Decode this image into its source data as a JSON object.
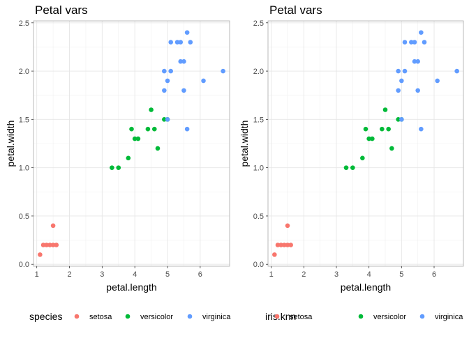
{
  "chart_data": [
    {
      "type": "scatter",
      "title": "Petal vars",
      "xlabel": "petal.length",
      "ylabel": "petal.width",
      "xlim": [
        0.9,
        6.9
      ],
      "ylim": [
        -0.02,
        2.52
      ],
      "xticks": [
        1,
        2,
        3,
        4,
        5,
        6
      ],
      "yticks": [
        0.0,
        0.5,
        1.0,
        1.5,
        2.0,
        2.5
      ],
      "ytick_labels": [
        "0.0",
        "0.5",
        "1.0",
        "1.5",
        "2.0",
        "2.5"
      ],
      "grid": true,
      "legend": {
        "title": "species",
        "placement": "bottom",
        "entries": [
          "setosa",
          "versicolor",
          "virginica"
        ]
      },
      "series": [
        {
          "name": "setosa",
          "color": "#F8766D",
          "points": [
            [
              1.1,
              0.1
            ],
            [
              1.2,
              0.2
            ],
            [
              1.3,
              0.2
            ],
            [
              1.4,
              0.2
            ],
            [
              1.5,
              0.2
            ],
            [
              1.6,
              0.2
            ],
            [
              1.5,
              0.4
            ]
          ]
        },
        {
          "name": "versicolor",
          "color": "#00BA38",
          "points": [
            [
              3.3,
              1.0
            ],
            [
              3.5,
              1.0
            ],
            [
              3.8,
              1.1
            ],
            [
              3.9,
              1.4
            ],
            [
              4.0,
              1.3
            ],
            [
              4.1,
              1.3
            ],
            [
              4.4,
              1.4
            ],
            [
              4.5,
              1.6
            ],
            [
              4.6,
              1.4
            ],
            [
              4.7,
              1.2
            ],
            [
              4.9,
              1.5
            ],
            [
              5.0,
              1.5
            ]
          ]
        },
        {
          "name": "virginica",
          "color": "#619CFF",
          "points": [
            [
              4.9,
              1.8
            ],
            [
              4.9,
              2.0
            ],
            [
              5.0,
              1.9
            ],
            [
              5.0,
              1.5
            ],
            [
              5.1,
              2.3
            ],
            [
              5.1,
              2.0
            ],
            [
              5.3,
              2.3
            ],
            [
              5.4,
              2.3
            ],
            [
              5.4,
              2.1
            ],
            [
              5.5,
              2.1
            ],
            [
              5.5,
              1.8
            ],
            [
              5.6,
              2.4
            ],
            [
              5.6,
              1.4
            ],
            [
              5.7,
              2.3
            ],
            [
              6.1,
              1.9
            ],
            [
              6.7,
              2.0
            ]
          ]
        }
      ]
    },
    {
      "type": "scatter",
      "title": "Petal vars",
      "xlabel": "petal.length",
      "ylabel": "petal.width",
      "xlim": [
        0.9,
        6.9
      ],
      "ylim": [
        -0.02,
        2.52
      ],
      "xticks": [
        1,
        2,
        3,
        4,
        5,
        6
      ],
      "yticks": [
        0.0,
        0.5,
        1.0,
        1.5,
        2.0,
        2.5
      ],
      "ytick_labels": [
        "0.0",
        "0.5",
        "1.0",
        "1.5",
        "2.0",
        "2.5"
      ],
      "grid": true,
      "legend": {
        "title": "iris.knn",
        "placement": "bottom",
        "entries": [
          "setosa",
          "versicolor",
          "virginica"
        ]
      },
      "series": [
        {
          "name": "setosa",
          "color": "#F8766D",
          "points": [
            [
              1.1,
              0.1
            ],
            [
              1.2,
              0.2
            ],
            [
              1.3,
              0.2
            ],
            [
              1.4,
              0.2
            ],
            [
              1.5,
              0.2
            ],
            [
              1.6,
              0.2
            ],
            [
              1.5,
              0.4
            ]
          ]
        },
        {
          "name": "versicolor",
          "color": "#00BA38",
          "points": [
            [
              3.3,
              1.0
            ],
            [
              3.5,
              1.0
            ],
            [
              3.8,
              1.1
            ],
            [
              3.9,
              1.4
            ],
            [
              4.0,
              1.3
            ],
            [
              4.1,
              1.3
            ],
            [
              4.4,
              1.4
            ],
            [
              4.5,
              1.6
            ],
            [
              4.6,
              1.4
            ],
            [
              4.7,
              1.2
            ],
            [
              4.9,
              1.5
            ],
            [
              5.0,
              1.5
            ]
          ]
        },
        {
          "name": "virginica",
          "color": "#619CFF",
          "points": [
            [
              4.9,
              1.8
            ],
            [
              4.9,
              2.0
            ],
            [
              5.0,
              1.9
            ],
            [
              5.0,
              1.5
            ],
            [
              5.1,
              2.3
            ],
            [
              5.1,
              2.0
            ],
            [
              5.3,
              2.3
            ],
            [
              5.4,
              2.3
            ],
            [
              5.4,
              2.1
            ],
            [
              5.5,
              2.1
            ],
            [
              5.5,
              1.8
            ],
            [
              5.6,
              2.4
            ],
            [
              5.6,
              1.4
            ],
            [
              5.7,
              2.3
            ],
            [
              6.1,
              1.9
            ],
            [
              6.7,
              2.0
            ]
          ]
        }
      ]
    }
  ]
}
